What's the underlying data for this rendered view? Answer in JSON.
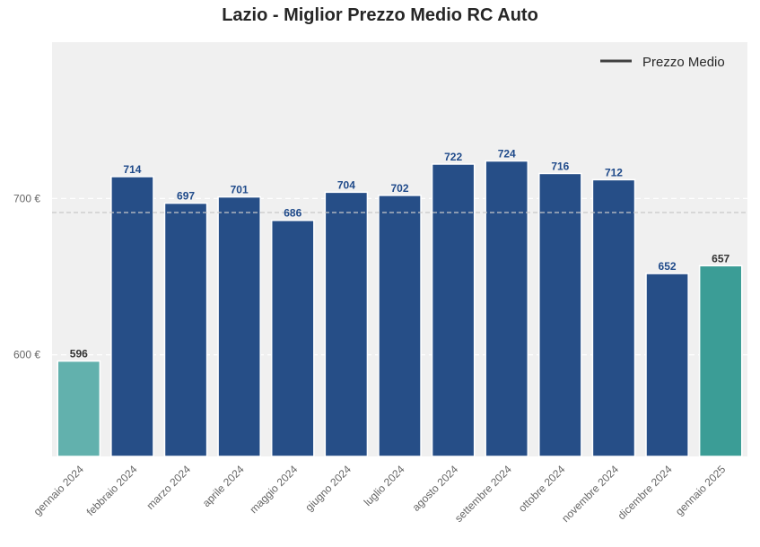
{
  "chart_data": {
    "type": "bar",
    "title": "Lazio - Miglior Prezzo Medio RC Auto",
    "categories": [
      "gennaio 2024",
      "febbraio 2024",
      "marzo 2024",
      "aprile 2024",
      "maggio 2024",
      "giugno 2024",
      "luglio 2024",
      "agosto 2024",
      "settembre 2024",
      "ottobre 2024",
      "novembre 2024",
      "dicembre 2024",
      "gennaio 2025"
    ],
    "values": [
      596,
      714,
      697,
      701,
      686,
      704,
      702,
      722,
      724,
      716,
      712,
      652,
      657
    ],
    "bar_colors": [
      "#62b1ad",
      "#264e87",
      "#264e87",
      "#264e87",
      "#264e87",
      "#264e87",
      "#264e87",
      "#264e87",
      "#264e87",
      "#264e87",
      "#264e87",
      "#264e87",
      "#3b9d96"
    ],
    "label_colors": [
      "#333333",
      "#1f4a8a",
      "#1f4a8a",
      "#1f4a8a",
      "#1f4a8a",
      "#1f4a8a",
      "#1f4a8a",
      "#1f4a8a",
      "#1f4a8a",
      "#1f4a8a",
      "#1f4a8a",
      "#1f4a8a",
      "#333333"
    ],
    "average_line": {
      "label": "Prezzo Medio",
      "value": 691
    },
    "yticks": [
      600,
      700
    ],
    "ytick_labels": [
      "600 €",
      "700 €"
    ],
    "ylim": [
      535,
      800
    ],
    "xlabel": "",
    "ylabel": "",
    "grid": true,
    "legend_position": "top-right",
    "background_color": "#f0f0f0"
  }
}
